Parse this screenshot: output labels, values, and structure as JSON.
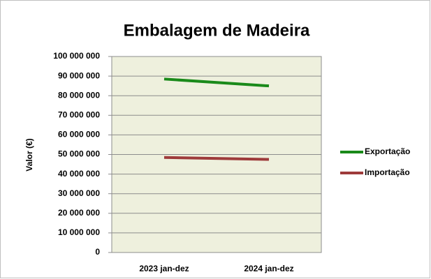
{
  "chart_data": {
    "type": "line",
    "title": "Embalagem de Madeira",
    "y_label": "Valor (€)",
    "categories": [
      "2023 jan-dez",
      "2024 jan-dez"
    ],
    "series": [
      {
        "name": "Exportação",
        "color": "#1a8a1a",
        "values": [
          88500000,
          85000000
        ]
      },
      {
        "name": "Importação",
        "color": "#9e3b3b",
        "values": [
          48500000,
          47500000
        ]
      }
    ],
    "ylim": [
      0,
      100000000
    ],
    "yticks": [
      0,
      {
        "value": 10000000,
        "label": "10 000 000"
      },
      {
        "value": 20000000,
        "label": "20 000 000"
      },
      {
        "value": 30000000,
        "label": "30 000 000"
      },
      {
        "value": 40000000,
        "label": "40 000 000"
      },
      {
        "value": 50000000,
        "label": "50 000 000"
      },
      {
        "value": 60000000,
        "label": "60 000 000"
      },
      {
        "value": 70000000,
        "label": "70 000 000"
      },
      {
        "value": 80000000,
        "label": "80 000 000"
      },
      {
        "value": 90000000,
        "label": "90 000 000"
      },
      {
        "value": 100000000,
        "label": "100 000 000"
      }
    ],
    "grid": true,
    "legend": "right"
  }
}
